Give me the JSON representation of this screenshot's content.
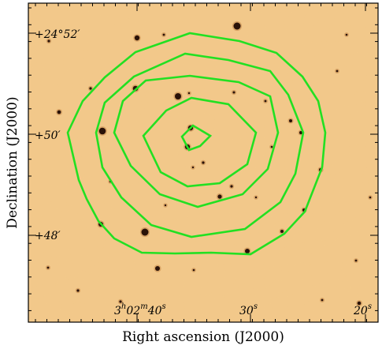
{
  "figure": {
    "x_axis_title": "Right ascension (J2000)",
    "y_axis_title": "Declination (J2000)",
    "x_ticks": [
      {
        "label_main": "3",
        "sup1": "h",
        "mid": "02",
        "sup2": "m",
        "tail": "40",
        "sup3": "s"
      },
      {
        "label_main": "30",
        "sup1": "s"
      },
      {
        "label_main": "20",
        "sup1": "s"
      }
    ],
    "y_ticks": [
      "+24°52′",
      "+50′",
      "+48′"
    ],
    "background_color": "#f3c98a",
    "contour_color": "#22e022",
    "contour_levels_count": 5
  }
}
